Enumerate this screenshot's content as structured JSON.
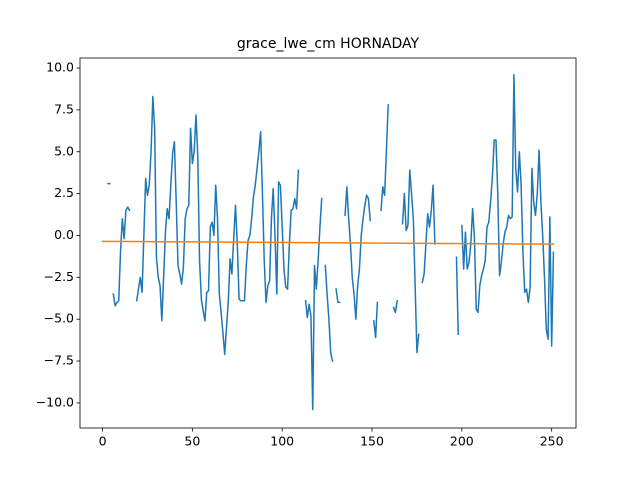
{
  "chart_data": {
    "type": "line",
    "title": "grace_lwe_cm HORNADAY",
    "xlim": [
      -12.55,
      263.55
    ],
    "ylim": [
      -11.5,
      10.6
    ],
    "xticks": [
      0,
      50,
      100,
      150,
      200,
      250
    ],
    "yticks": [
      {
        "value": -10,
        "label": "−10.0"
      },
      {
        "value": -7.5,
        "label": "−7.5"
      },
      {
        "value": -5,
        "label": "−5.0"
      },
      {
        "value": -2.5,
        "label": "−2.5"
      },
      {
        "value": 0,
        "label": "0.0"
      },
      {
        "value": 2.5,
        "label": "2.5"
      },
      {
        "value": 5,
        "label": "5.0"
      },
      {
        "value": 7.5,
        "label": "7.5"
      },
      {
        "value": 10,
        "label": "10.0"
      }
    ],
    "series": [
      {
        "color": "#1f77b4",
        "x": [
          0,
          1,
          2,
          3,
          4,
          5,
          6,
          7,
          8,
          9,
          10,
          11,
          12,
          13,
          14,
          15,
          16,
          17,
          18,
          19,
          20,
          21,
          22,
          23,
          24,
          25,
          26,
          27,
          28,
          29,
          30,
          31,
          32,
          33,
          34,
          35,
          36,
          37,
          38,
          39,
          40,
          41,
          42,
          43,
          44,
          45,
          46,
          47,
          48,
          49,
          50,
          51,
          52,
          53,
          54,
          55,
          56,
          57,
          58,
          59,
          60,
          61,
          62,
          63,
          64,
          65,
          66,
          67,
          68,
          69,
          70,
          71,
          72,
          73,
          74,
          75,
          76,
          77,
          78,
          79,
          80,
          81,
          82,
          83,
          84,
          85,
          86,
          87,
          88,
          89,
          90,
          91,
          92,
          93,
          94,
          95,
          96,
          97,
          98,
          99,
          100,
          101,
          102,
          103,
          104,
          105,
          106,
          107,
          108,
          109,
          110,
          111,
          112,
          113,
          114,
          115,
          116,
          117,
          118,
          119,
          120,
          121,
          122,
          123,
          124,
          125,
          126,
          127,
          128,
          129,
          130,
          131,
          132,
          133,
          134,
          135,
          136,
          137,
          138,
          139,
          140,
          141,
          142,
          143,
          144,
          145,
          146,
          147,
          148,
          149,
          150,
          151,
          152,
          153,
          154,
          155,
          156,
          157,
          158,
          159,
          160,
          161,
          162,
          163,
          164,
          165,
          166,
          167,
          168,
          169,
          170,
          171,
          172,
          173,
          174,
          175,
          176,
          177,
          178,
          179,
          180,
          181,
          182,
          183,
          184,
          185,
          186,
          187,
          188,
          189,
          190,
          191,
          192,
          193,
          194,
          195,
          196,
          197,
          198,
          199,
          200,
          201,
          202,
          203,
          204,
          205,
          206,
          207,
          208,
          209,
          210,
          211,
          212,
          213,
          214,
          215,
          216,
          217,
          218,
          219,
          220,
          221,
          222,
          223,
          224,
          225,
          226,
          227,
          228,
          229,
          230,
          231,
          232,
          233,
          234,
          235,
          236,
          237,
          238,
          239,
          240,
          241,
          242,
          243,
          244,
          245,
          246,
          247,
          248,
          249,
          250,
          251
        ],
        "values": [
          null,
          null,
          null,
          3.1,
          3.1,
          null,
          -3.5,
          -4.2,
          -4.0,
          -3.9,
          -1.0,
          1.0,
          -0.2,
          1.5,
          1.7,
          1.5,
          null,
          null,
          null,
          -3.9,
          -3.2,
          -2.5,
          -3.4,
          0.0,
          3.4,
          2.4,
          3.0,
          5.0,
          8.3,
          6.4,
          -1.3,
          -2.5,
          -3.0,
          -5.1,
          -2.5,
          0.2,
          1.6,
          1.0,
          3.0,
          4.9,
          5.6,
          2.0,
          -1.8,
          -2.3,
          -2.9,
          -1.9,
          1.0,
          1.6,
          1.8,
          6.4,
          4.3,
          5.0,
          7.2,
          4.8,
          -1.5,
          -3.8,
          -4.5,
          -5.1,
          -3.4,
          -3.3,
          0.5,
          0.8,
          0.0,
          3.0,
          1.0,
          -3.5,
          -4.6,
          -5.8,
          -7.1,
          -5.5,
          -3.9,
          -1.4,
          -2.3,
          -0.2,
          1.8,
          -0.5,
          -3.8,
          -3.9,
          -3.9,
          -3.9,
          -1.8,
          -0.3,
          0.0,
          1.0,
          2.3,
          3.0,
          4.0,
          5.0,
          6.2,
          2.5,
          -1.5,
          -4.0,
          -3.0,
          -2.7,
          1.0,
          2.8,
          0.0,
          -3.5,
          3.2,
          3.0,
          0.5,
          -2.0,
          -3.1,
          -3.2,
          -0.5,
          1.5,
          1.6,
          2.2,
          1.6,
          3.9,
          null,
          null,
          null,
          -3.9,
          -4.9,
          -4.1,
          -4.8,
          -10.4,
          -1.8,
          -3.2,
          -1.5,
          0.5,
          2.2,
          null,
          -1.8,
          -3.5,
          -5.0,
          -7.0,
          -7.5,
          null,
          -3.2,
          -4.0,
          -4.0,
          null,
          null,
          1.2,
          2.9,
          1.0,
          -0.5,
          -2.5,
          -3.5,
          -5.0,
          -3.0,
          -2.0,
          0.0,
          1.0,
          1.8,
          2.4,
          2.2,
          0.9,
          null,
          -5.1,
          -6.1,
          -4.0,
          null,
          1.5,
          2.9,
          2.4,
          5.0,
          7.8,
          null,
          null,
          -4.3,
          -4.6,
          -3.9,
          null,
          null,
          0.7,
          2.5,
          0.3,
          0.6,
          3.9,
          2.5,
          1.0,
          -3.0,
          -7.0,
          -5.9,
          null,
          -2.8,
          -2.3,
          -0.5,
          1.3,
          0.5,
          1.5,
          3.0,
          -0.5,
          null,
          null,
          null,
          null,
          null,
          null,
          null,
          null,
          null,
          null,
          null,
          -1.3,
          -5.9,
          null,
          0.6,
          -2.0,
          0.2,
          -2.0,
          -1.6,
          -0.5,
          1.6,
          -0.1,
          -4.4,
          -4.6,
          -3.0,
          -2.4,
          -2.0,
          -1.5,
          0.5,
          0.8,
          2.0,
          3.5,
          5.7,
          5.7,
          2.5,
          -2.4,
          -1.6,
          -0.5,
          0.2,
          0.5,
          1.2,
          1.0,
          1.1,
          9.6,
          4.0,
          2.6,
          5.0,
          3.0,
          -1.0,
          -3.4,
          -3.2,
          -4.0,
          -3.1,
          4.0,
          2.0,
          1.2,
          2.5,
          5.1,
          2.0,
          0.0,
          -2.5,
          -5.6,
          -6.2,
          1.1,
          -6.6,
          -1.0
        ]
      },
      {
        "color": "#ff7f0e",
        "x": [
          0,
          251
        ],
        "values": [
          -0.35,
          -0.52
        ]
      }
    ]
  }
}
